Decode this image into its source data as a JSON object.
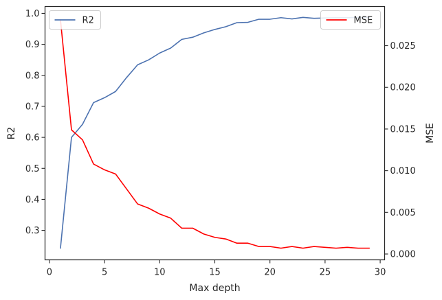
{
  "chart_data": {
    "type": "line",
    "xlabel": "Max depth",
    "ylabel_left": "R2",
    "ylabel_right": "MSE",
    "xlim": [
      -0.4,
      30.4
    ],
    "ylim_left": [
      0.205,
      1.022
    ],
    "ylim_right": [
      -0.0007,
      0.0297
    ],
    "xticks": [
      0,
      5,
      10,
      15,
      20,
      25,
      30
    ],
    "yticks_left": [
      0.3,
      0.4,
      0.5,
      0.6,
      0.7,
      0.8,
      0.9,
      1.0
    ],
    "yticks_left_labels": [
      "0.3",
      "0.4",
      "0.5",
      "0.6",
      "0.7",
      "0.8",
      "0.9",
      "1.0"
    ],
    "yticks_right": [
      0.0,
      0.005,
      0.01,
      0.015,
      0.02,
      0.025
    ],
    "yticks_right_labels": [
      "0.000",
      "0.005",
      "0.010",
      "0.015",
      "0.020",
      "0.025"
    ],
    "grid": false,
    "x": [
      1,
      2,
      3,
      4,
      5,
      6,
      7,
      8,
      9,
      10,
      11,
      12,
      13,
      14,
      15,
      16,
      17,
      18,
      19,
      20,
      21,
      22,
      23,
      24,
      25,
      26,
      27,
      28,
      29
    ],
    "series": [
      {
        "name": "R2",
        "axis": "left",
        "color": "#4c72b0",
        "values": [
          0.243,
          0.6,
          0.642,
          0.712,
          0.728,
          0.748,
          0.793,
          0.834,
          0.85,
          0.872,
          0.888,
          0.916,
          0.923,
          0.937,
          0.948,
          0.957,
          0.97,
          0.971,
          0.981,
          0.981,
          0.986,
          0.982,
          0.987,
          0.984,
          0.985,
          0.986,
          0.986,
          0.987,
          0.987
        ]
      },
      {
        "name": "MSE",
        "axis": "right",
        "color": "#ff0000",
        "values": [
          0.0281,
          0.0149,
          0.0137,
          0.0108,
          0.0101,
          0.0096,
          0.0078,
          0.006,
          0.0055,
          0.0048,
          0.0043,
          0.0031,
          0.0031,
          0.0024,
          0.002,
          0.0018,
          0.0013,
          0.0013,
          0.0009,
          0.0009,
          0.0007,
          0.0009,
          0.0007,
          0.0009,
          0.0008,
          0.0007,
          0.0008,
          0.0007,
          0.0007
        ]
      }
    ],
    "legends": [
      {
        "placement": "upper left",
        "entries": [
          "R2"
        ]
      },
      {
        "placement": "upper right",
        "entries": [
          "MSE"
        ]
      }
    ]
  }
}
